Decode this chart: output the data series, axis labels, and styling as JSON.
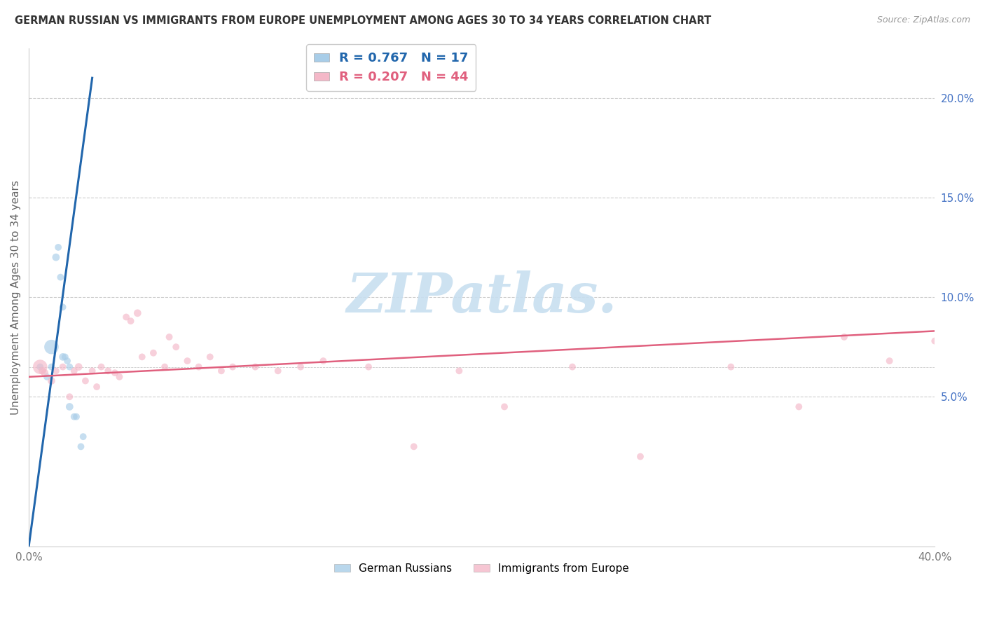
{
  "title": "GERMAN RUSSIAN VS IMMIGRANTS FROM EUROPE UNEMPLOYMENT AMONG AGES 30 TO 34 YEARS CORRELATION CHART",
  "source": "Source: ZipAtlas.com",
  "ylabel": "Unemployment Among Ages 30 to 34 years",
  "xlim": [
    0.0,
    0.4
  ],
  "ylim": [
    -0.025,
    0.225
  ],
  "xticks": [
    0.0,
    0.05,
    0.1,
    0.15,
    0.2,
    0.25,
    0.3,
    0.35,
    0.4
  ],
  "xtick_labels": [
    "0.0%",
    "",
    "",
    "",
    "",
    "",
    "",
    "",
    "40.0%"
  ],
  "yticks_right": [
    0.05,
    0.1,
    0.15,
    0.2
  ],
  "ytick_right_labels": [
    "5.0%",
    "10.0%",
    "15.0%",
    "20.0%"
  ],
  "blue_color": "#a8cde8",
  "pink_color": "#f4b8c8",
  "blue_line_color": "#2166ac",
  "pink_line_color": "#e0607e",
  "watermark_color": "#c8dff0",
  "german_russian_x": [
    0.005,
    0.008,
    0.01,
    0.01,
    0.012,
    0.013,
    0.014,
    0.015,
    0.015,
    0.016,
    0.017,
    0.018,
    0.018,
    0.02,
    0.021,
    0.023,
    0.024
  ],
  "german_russian_y": [
    0.065,
    0.06,
    0.065,
    0.075,
    0.12,
    0.125,
    0.11,
    0.095,
    0.07,
    0.07,
    0.068,
    0.065,
    0.045,
    0.04,
    0.04,
    0.025,
    0.03
  ],
  "german_russian_size": [
    50,
    50,
    50,
    220,
    60,
    50,
    50,
    50,
    60,
    50,
    50,
    50,
    60,
    50,
    50,
    50,
    50
  ],
  "blue_line_x": [
    0.0,
    0.028
  ],
  "blue_line_y": [
    -0.025,
    0.21
  ],
  "immigrants_x": [
    0.005,
    0.006,
    0.007,
    0.01,
    0.012,
    0.015,
    0.018,
    0.02,
    0.022,
    0.025,
    0.028,
    0.03,
    0.032,
    0.035,
    0.038,
    0.04,
    0.043,
    0.045,
    0.048,
    0.05,
    0.055,
    0.06,
    0.062,
    0.065,
    0.07,
    0.075,
    0.08,
    0.085,
    0.09,
    0.1,
    0.11,
    0.12,
    0.13,
    0.15,
    0.17,
    0.19,
    0.21,
    0.24,
    0.27,
    0.31,
    0.34,
    0.36,
    0.38,
    0.4
  ],
  "immigrants_y": [
    0.065,
    0.063,
    0.062,
    0.058,
    0.063,
    0.065,
    0.05,
    0.063,
    0.065,
    0.058,
    0.063,
    0.055,
    0.065,
    0.063,
    0.062,
    0.06,
    0.09,
    0.088,
    0.092,
    0.07,
    0.072,
    0.065,
    0.08,
    0.075,
    0.068,
    0.065,
    0.07,
    0.063,
    0.065,
    0.065,
    0.063,
    0.065,
    0.068,
    0.065,
    0.025,
    0.063,
    0.045,
    0.065,
    0.02,
    0.065,
    0.045,
    0.08,
    0.068,
    0.078
  ],
  "immigrants_size": [
    220,
    60,
    60,
    60,
    50,
    50,
    50,
    50,
    60,
    50,
    50,
    50,
    50,
    50,
    50,
    50,
    50,
    50,
    60,
    50,
    50,
    50,
    50,
    50,
    50,
    50,
    50,
    50,
    50,
    50,
    50,
    50,
    50,
    50,
    50,
    50,
    50,
    50,
    50,
    50,
    50,
    50,
    50,
    50
  ],
  "pink_line_x": [
    0.0,
    0.4
  ],
  "pink_line_y": [
    0.06,
    0.083
  ]
}
